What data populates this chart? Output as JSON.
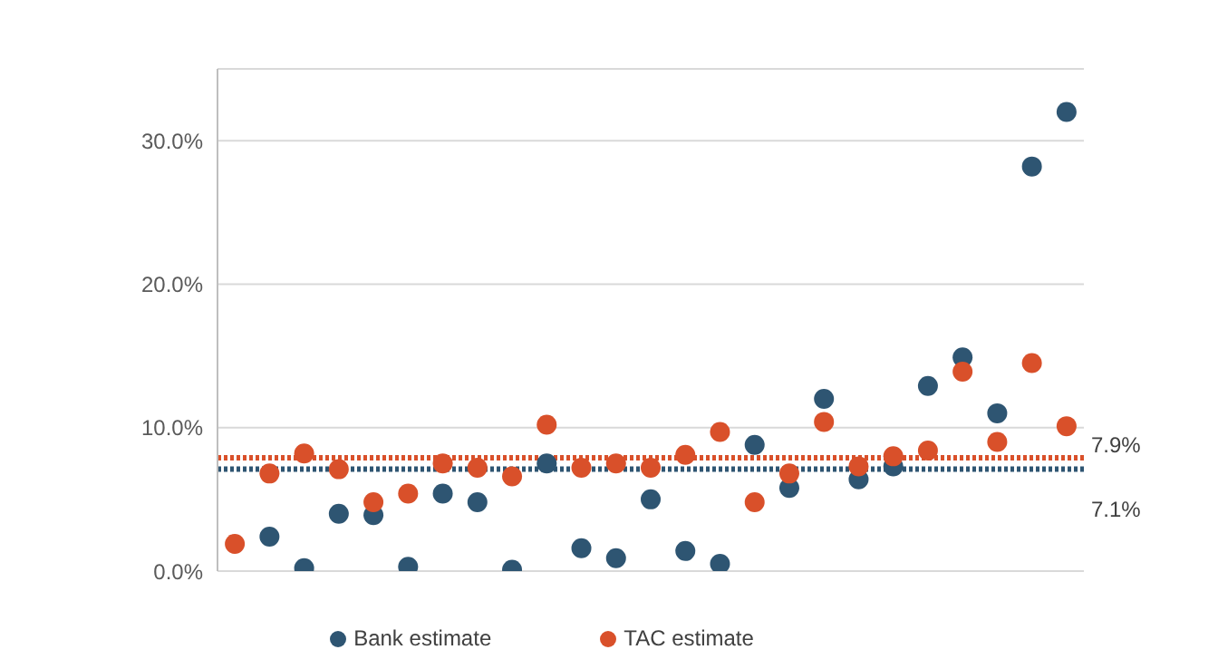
{
  "chart_data": {
    "type": "scatter",
    "categories": [
      null,
      null,
      null,
      null,
      null,
      null,
      null,
      null,
      null,
      null,
      null,
      null,
      null,
      null,
      null,
      null,
      null,
      null,
      null,
      null,
      null,
      null,
      null,
      null,
      null
    ],
    "series": [
      {
        "name": "Bank estimate",
        "color": "#2e5572",
        "values": [
          null,
          2.4,
          0.2,
          4.0,
          3.9,
          0.3,
          5.4,
          4.8,
          0.1,
          7.5,
          1.6,
          0.9,
          5.0,
          1.4,
          0.5,
          8.8,
          5.8,
          12.0,
          6.4,
          7.3,
          12.9,
          14.9,
          11.0,
          28.2,
          32.0
        ]
      },
      {
        "name": "TAC estimate",
        "color": "#d9502a",
        "values": [
          1.9,
          6.8,
          8.2,
          7.1,
          4.8,
          5.4,
          7.5,
          7.2,
          6.6,
          10.2,
          7.2,
          7.5,
          7.2,
          8.1,
          9.7,
          4.8,
          6.8,
          10.4,
          7.3,
          8.0,
          8.4,
          13.9,
          9.0,
          14.5,
          10.1
        ]
      }
    ],
    "ylim": [
      0,
      35
    ],
    "yticks": [
      {
        "value": 0,
        "label": "0.0%"
      },
      {
        "value": 10,
        "label": "10.0%"
      },
      {
        "value": 20,
        "label": "20.0%"
      },
      {
        "value": 30,
        "label": "30.0%"
      }
    ],
    "ref_lines": [
      {
        "axis": "y",
        "value": 7.9,
        "label": "7.9%",
        "color": "#d9502a",
        "line_style": "dotted"
      },
      {
        "axis": "y",
        "value": 7.1,
        "label": "7.1%",
        "color": "#2e5572",
        "line_style": "dotted"
      }
    ],
    "grid": "y",
    "legend": "bottom",
    "marker": "circle"
  }
}
